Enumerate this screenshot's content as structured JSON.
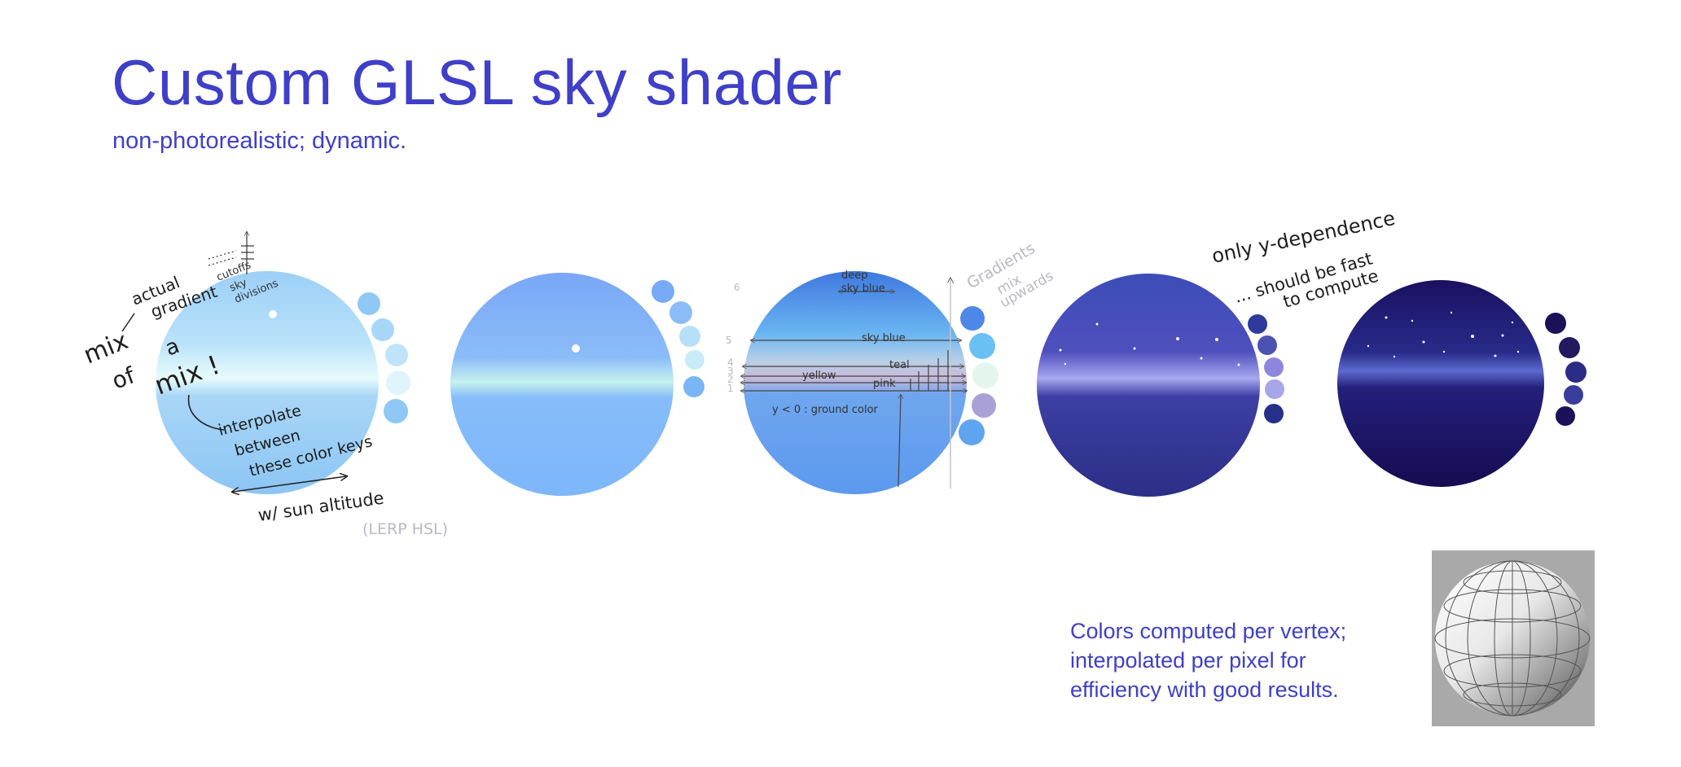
{
  "header": {
    "title": "Custom GLSL sky shader",
    "subtitle": "non-photorealistic; dynamic."
  },
  "caption": {
    "lines": [
      "Colors computed per vertex;",
      "interpolated per pixel for",
      "efficiency with good results."
    ]
  },
  "annotations": {
    "mix1": "mix",
    "mix2": "of",
    "mix3": "a",
    "mix4": "mix !",
    "actual": "actual",
    "gradient": "gradient",
    "cutoffs": "cutoffs",
    "sky": "sky",
    "divisions": "divisions",
    "interp1": "interpolate",
    "interp2": "between",
    "interp3": "these color keys",
    "sun_alt": "w/ sun altitude",
    "lerp": "(LERP HSL)",
    "deep": "deep",
    "sky_blue_top": "sky blue",
    "sky_blue": "sky blue",
    "teal": "teal",
    "yellow": "yellow",
    "pink": "pink",
    "ground": "y < 0 : ground color",
    "gradients": "Gradients",
    "mix_word": "mix",
    "upwards": "upwards",
    "idx6": "6",
    "idx5": "5",
    "idx4": "4",
    "idx3": "3",
    "idx2": "2",
    "idx1": "1",
    "only_y": "only  y-dependence",
    "fast": "... should be fast",
    "compute": "to compute"
  },
  "colors": {
    "accent": "#3f3fc9",
    "day_top": "#9fd0f8",
    "day_horizon": "#e6fbfb",
    "noon_sky": "#7eb6fa",
    "dusk_sky": "#3b40a6",
    "night_sky": "#1b0f59"
  },
  "swatches": {
    "day": [
      "#8fc8f5",
      "#a6d7f8",
      "#bfe4fa",
      "#dff4fb",
      "#8fc8f5"
    ],
    "noon": [
      "#77aaf7",
      "#8cbcf8",
      "#b6e0f7",
      "#c7ecf5",
      "#7ab5f8"
    ],
    "annotated": [
      "#4d87e8",
      "#6bc0f3",
      "#e2f6ec",
      "#a9a0d6",
      "#5fa4ef"
    ],
    "dusk": [
      "#2e3a9e",
      "#4c52b3",
      "#8d86df",
      "#a6a6e8",
      "#26308a"
    ],
    "night": [
      "#1b1158",
      "#22195f",
      "#2a2c85",
      "#3a3e9a",
      "#1b1158"
    ]
  }
}
